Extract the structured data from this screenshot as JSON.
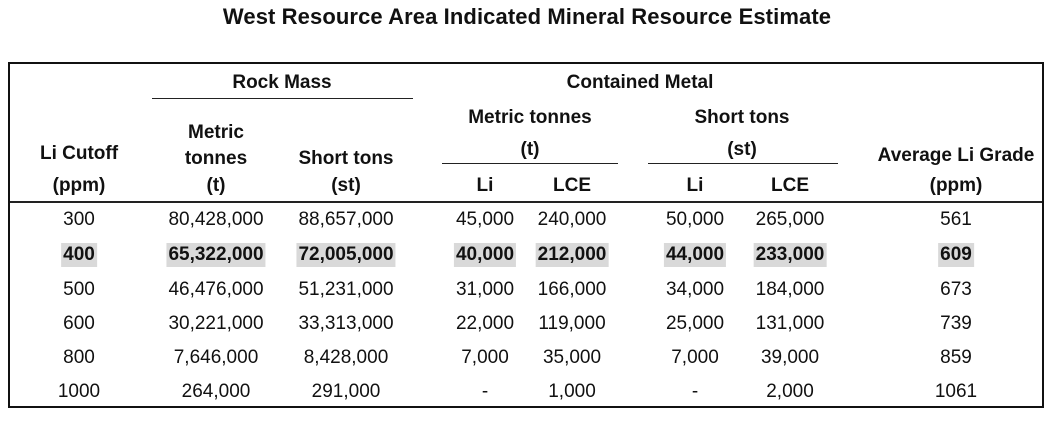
{
  "title": "West Resource Area Indicated Mineral Resource Estimate",
  "headers": {
    "rock_mass": "Rock Mass",
    "contained_metal": "Contained Metal",
    "metric_tonnes_group": [
      "Metric tonnes",
      "(t)"
    ],
    "short_tons_group": [
      "Short tons",
      "(st)"
    ],
    "li_cutoff": [
      "Li Cutoff",
      "(ppm)"
    ],
    "rock_metric": [
      "Metric",
      "tonnes",
      "(t)"
    ],
    "rock_short": [
      "Short tons",
      "(st)"
    ],
    "li": "Li",
    "lce": "LCE",
    "avg_grade": [
      "Average Li Grade",
      "(ppm)"
    ]
  },
  "rows": [
    {
      "cells": [
        "300",
        "80,428,000",
        "88,657,000",
        "45,000",
        "240,000",
        "50,000",
        "265,000",
        "561"
      ],
      "highlight": false
    },
    {
      "cells": [
        "400",
        "65,322,000",
        "72,005,000",
        "40,000",
        "212,000",
        "44,000",
        "233,000",
        "609"
      ],
      "highlight": true
    },
    {
      "cells": [
        "500",
        "46,476,000",
        "51,231,000",
        "31,000",
        "166,000",
        "34,000",
        "184,000",
        "673"
      ],
      "highlight": false
    },
    {
      "cells": [
        "600",
        "30,221,000",
        "33,313,000",
        "22,000",
        "119,000",
        "25,000",
        "131,000",
        "739"
      ],
      "highlight": false
    },
    {
      "cells": [
        "800",
        "7,646,000",
        "8,428,000",
        "7,000",
        "35,000",
        "7,000",
        "39,000",
        "859"
      ],
      "highlight": false
    },
    {
      "cells": [
        "1000",
        "264,000",
        "291,000",
        "-",
        "1,000",
        "-",
        "2,000",
        "1061"
      ],
      "highlight": false
    }
  ]
}
